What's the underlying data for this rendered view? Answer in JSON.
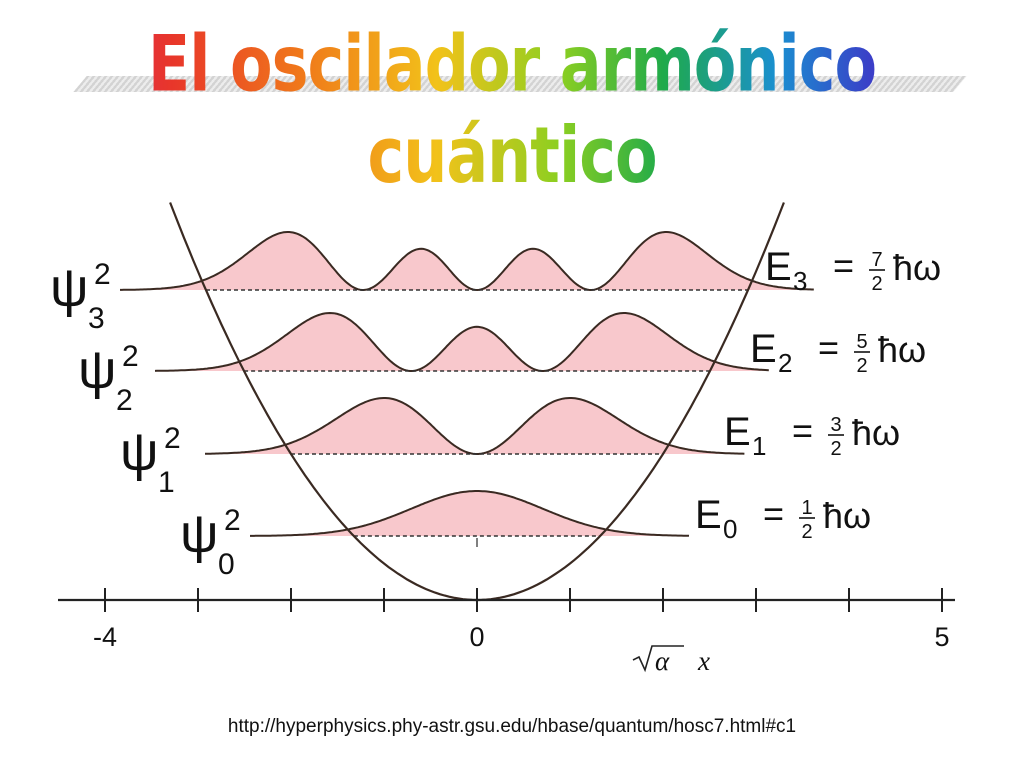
{
  "title": "El oscilador armónico cuántico",
  "x_axis": {
    "label_symbol": "α",
    "label_var": "x",
    "ticks": [
      -4,
      -3,
      -2,
      -1,
      0,
      1,
      2,
      3,
      4,
      5
    ],
    "labels": [
      {
        "value": -4,
        "text": "-4"
      },
      {
        "value": 0,
        "text": "0"
      },
      {
        "value": 5,
        "text": "5"
      }
    ]
  },
  "levels": [
    {
      "n": 0,
      "psi": "ψ",
      "sub": "0",
      "sup": "2",
      "E": "E",
      "E_sub": "0",
      "eq": "=",
      "num": "1",
      "den": "2",
      "hbar": "ħω"
    },
    {
      "n": 1,
      "psi": "ψ",
      "sub": "1",
      "sup": "2",
      "E": "E",
      "E_sub": "1",
      "eq": "=",
      "num": "3",
      "den": "2",
      "hbar": "ħω"
    },
    {
      "n": 2,
      "psi": "ψ",
      "sub": "2",
      "sup": "2",
      "E": "E",
      "E_sub": "2",
      "eq": "=",
      "num": "5",
      "den": "2",
      "hbar": "ħω"
    },
    {
      "n": 3,
      "psi": "ψ",
      "sub": "3",
      "sup": "2",
      "E": "E",
      "E_sub": "3",
      "eq": "=",
      "num": "7",
      "den": "2",
      "hbar": "ħω"
    }
  ],
  "colors": {
    "fill": "#f8c8cc",
    "curve": "#3a2a22",
    "axis": "#222222"
  },
  "source_url": "http://hyperphysics.phy-astr.gsu.edu/hbase/quantum/hosc7.html#c1"
}
